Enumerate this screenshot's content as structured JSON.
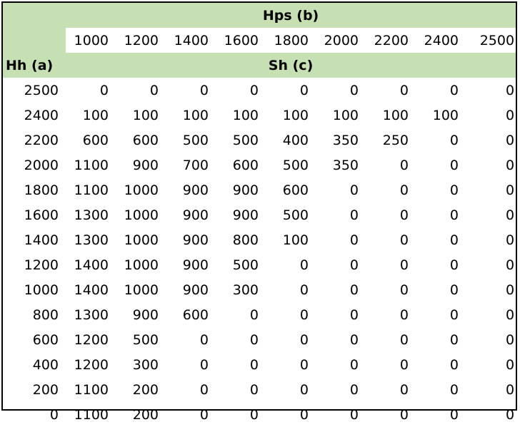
{
  "table": {
    "top_title": "Hps (b)",
    "corner_label": "Hh (a)",
    "sub_title": "Sh (c)",
    "columns": [
      "1000",
      "1200",
      "1400",
      "1600",
      "1800",
      "2000",
      "2200",
      "2400",
      "2500"
    ],
    "rows": [
      {
        "hh": "2500",
        "values": [
          "0",
          "0",
          "0",
          "0",
          "0",
          "0",
          "0",
          "0",
          "0"
        ]
      },
      {
        "hh": "2400",
        "values": [
          "100",
          "100",
          "100",
          "100",
          "100",
          "100",
          "100",
          "100",
          "0"
        ]
      },
      {
        "hh": "2200",
        "values": [
          "600",
          "600",
          "500",
          "500",
          "400",
          "350",
          "250",
          "0",
          "0"
        ]
      },
      {
        "hh": "2000",
        "values": [
          "1100",
          "900",
          "700",
          "600",
          "500",
          "350",
          "0",
          "0",
          "0"
        ]
      },
      {
        "hh": "1800",
        "values": [
          "1100",
          "1000",
          "900",
          "900",
          "600",
          "0",
          "0",
          "0",
          "0"
        ]
      },
      {
        "hh": "1600",
        "values": [
          "1300",
          "1000",
          "900",
          "900",
          "500",
          "0",
          "0",
          "0",
          "0"
        ]
      },
      {
        "hh": "1400",
        "values": [
          "1300",
          "1000",
          "900",
          "800",
          "100",
          "0",
          "0",
          "0",
          "0"
        ]
      },
      {
        "hh": "1200",
        "values": [
          "1400",
          "1000",
          "900",
          "500",
          "0",
          "0",
          "0",
          "0",
          "0"
        ]
      },
      {
        "hh": "1000",
        "values": [
          "1400",
          "1000",
          "900",
          "300",
          "0",
          "0",
          "0",
          "0",
          "0"
        ]
      },
      {
        "hh": "800",
        "values": [
          "1300",
          "900",
          "600",
          "0",
          "0",
          "0",
          "0",
          "0",
          "0"
        ]
      },
      {
        "hh": "600",
        "values": [
          "1200",
          "500",
          "0",
          "0",
          "0",
          "0",
          "0",
          "0",
          "0"
        ]
      },
      {
        "hh": "400",
        "values": [
          "1200",
          "300",
          "0",
          "0",
          "0",
          "0",
          "0",
          "0",
          "0"
        ]
      },
      {
        "hh": "200",
        "values": [
          "1100",
          "200",
          "0",
          "0",
          "0",
          "0",
          "0",
          "0",
          "0"
        ]
      },
      {
        "hh": "0",
        "values": [
          "1100",
          "200",
          "0",
          "0",
          "0",
          "0",
          "0",
          "0",
          "0"
        ]
      }
    ]
  },
  "colors": {
    "header_band": "#c6e0b4",
    "border": "#000000"
  }
}
